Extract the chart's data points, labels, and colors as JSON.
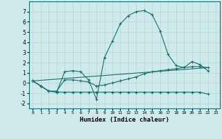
{
  "xlabel": "Humidex (Indice chaleur)",
  "background_color": "#ceeaea",
  "grid_color": "#b8d8d8",
  "line_color": "#1a6b6b",
  "xlim": [
    -0.5,
    23.5
  ],
  "ylim": [
    -2.5,
    8.0
  ],
  "yticks": [
    -2,
    -1,
    0,
    1,
    2,
    3,
    4,
    5,
    6,
    7
  ],
  "xticks": [
    0,
    1,
    2,
    3,
    4,
    5,
    6,
    7,
    8,
    9,
    10,
    11,
    12,
    13,
    14,
    15,
    16,
    17,
    18,
    19,
    20,
    21,
    22,
    23
  ],
  "xtick_labels": [
    "0",
    "1",
    "2",
    "3",
    "4",
    "5",
    "6",
    "7",
    "8",
    "9",
    "10",
    "11",
    "12",
    "13",
    "14",
    "15",
    "16",
    "17",
    "18",
    "19",
    "20",
    "21",
    "22",
    "23"
  ],
  "lines": [
    {
      "x": [
        0,
        1,
        2,
        3,
        4,
        5,
        6,
        7,
        8,
        9,
        10,
        11,
        12,
        13,
        14,
        15,
        16,
        17,
        18,
        19,
        20,
        21,
        22
      ],
      "y": [
        0.2,
        -0.3,
        -0.8,
        -0.9,
        1.1,
        1.2,
        1.1,
        0.3,
        -1.6,
        2.5,
        4.1,
        5.8,
        6.6,
        7.0,
        7.1,
        6.7,
        5.1,
        2.8,
        1.7,
        1.5,
        2.1,
        1.8,
        1.2
      ],
      "marker": "+"
    },
    {
      "x": [
        0,
        1,
        2,
        3,
        4,
        5,
        6,
        7,
        8,
        9,
        10,
        11,
        12,
        13,
        14,
        15,
        16,
        17,
        18,
        19,
        20,
        21,
        22
      ],
      "y": [
        0.2,
        -0.3,
        -0.8,
        -0.8,
        0.3,
        0.3,
        0.2,
        0.1,
        -0.3,
        -0.2,
        0.0,
        0.2,
        0.4,
        0.6,
        0.9,
        1.1,
        1.2,
        1.3,
        1.4,
        1.5,
        1.6,
        1.6,
        1.5
      ],
      "marker": "+"
    },
    {
      "x": [
        0,
        1,
        2,
        3,
        4,
        5,
        6,
        7,
        8,
        9,
        10,
        11,
        12,
        13,
        14,
        15,
        16,
        17,
        18,
        19,
        20,
        21,
        22
      ],
      "y": [
        0.2,
        -0.3,
        -0.8,
        -0.9,
        -0.9,
        -0.9,
        -0.9,
        -0.9,
        -0.9,
        -0.9,
        -0.9,
        -0.9,
        -0.9,
        -0.9,
        -0.9,
        -0.9,
        -0.9,
        -0.9,
        -0.9,
        -0.9,
        -0.9,
        -0.9,
        -1.1
      ],
      "marker": "+"
    },
    {
      "x": [
        0,
        22
      ],
      "y": [
        0.2,
        1.5
      ],
      "marker": null
    }
  ]
}
